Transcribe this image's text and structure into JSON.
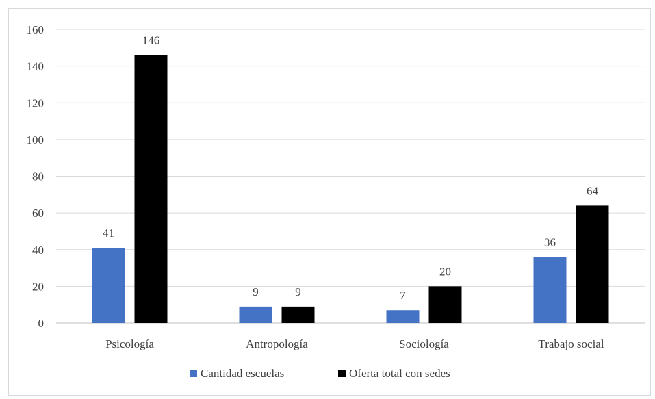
{
  "chart_data": {
    "type": "bar",
    "title": "",
    "xlabel": "",
    "ylabel": "",
    "categories": [
      "Psicología",
      "Antropología",
      "Sociología",
      "Trabajo social"
    ],
    "series": [
      {
        "name": "Cantidad escuelas",
        "values": [
          41,
          9,
          7,
          36
        ],
        "color": "#4472c4"
      },
      {
        "name": "Oferta total con sedes",
        "values": [
          146,
          9,
          20,
          64
        ],
        "color": "#000000"
      }
    ],
    "ylim": [
      0,
      160
    ],
    "yticks": [
      0,
      20,
      40,
      60,
      80,
      100,
      120,
      140,
      160
    ],
    "grid": true,
    "legend_position": "bottom",
    "data_labels": true,
    "colors": {
      "grid": "#d9d9d9",
      "axis": "#bfbfbf",
      "text": "#404040"
    }
  }
}
